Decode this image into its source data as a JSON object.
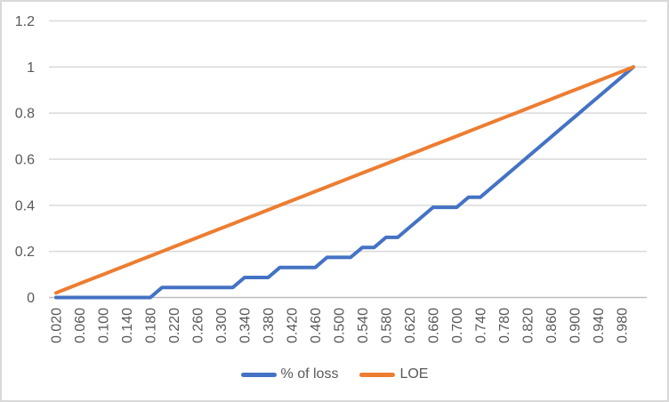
{
  "chart_data": {
    "type": "line",
    "title": "",
    "xlabel": "",
    "ylabel": "",
    "ylim": [
      0,
      1.2
    ],
    "grid": "horizontal",
    "legend_position": "bottom",
    "x": [
      0.02,
      0.04,
      0.06,
      0.08,
      0.1,
      0.12,
      0.14,
      0.16,
      0.18,
      0.2,
      0.22,
      0.24,
      0.26,
      0.28,
      0.3,
      0.32,
      0.34,
      0.36,
      0.38,
      0.4,
      0.42,
      0.44,
      0.46,
      0.48,
      0.5,
      0.52,
      0.54,
      0.56,
      0.58,
      0.6,
      0.62,
      0.64,
      0.66,
      0.68,
      0.7,
      0.72,
      0.74,
      0.76,
      0.78,
      0.8,
      0.82,
      0.84,
      0.86,
      0.88,
      0.9,
      0.92,
      0.94,
      0.96,
      0.98,
      1.0
    ],
    "x_tick_labels": [
      "0.020",
      "0.060",
      "0.100",
      "0.140",
      "0.180",
      "0.220",
      "0.260",
      "0.300",
      "0.340",
      "0.380",
      "0.420",
      "0.460",
      "0.500",
      "0.540",
      "0.580",
      "0.620",
      "0.660",
      "0.700",
      "0.740",
      "0.780",
      "0.820",
      "0.860",
      "0.900",
      "0.940",
      "0.980"
    ],
    "y_ticks": [
      0,
      0.2,
      0.4,
      0.6,
      0.8,
      1,
      1.2
    ],
    "y_tick_labels": [
      "0",
      "0.2",
      "0.4",
      "0.6",
      "0.8",
      "1",
      "1.2"
    ],
    "series": [
      {
        "name": "% of loss",
        "color": "#4472C4",
        "values": [
          0,
          0,
          0,
          0,
          0,
          0,
          0,
          0,
          0,
          0.0435,
          0.0435,
          0.0435,
          0.0435,
          0.0435,
          0.0435,
          0.0435,
          0.087,
          0.087,
          0.087,
          0.1304,
          0.1304,
          0.1304,
          0.1304,
          0.1739,
          0.1739,
          0.1739,
          0.2174,
          0.2174,
          0.2609,
          0.2609,
          0.3043,
          0.3478,
          0.3913,
          0.3913,
          0.3913,
          0.4348,
          0.4348,
          0.4783,
          0.5217,
          0.5652,
          0.6087,
          0.6522,
          0.6957,
          0.7391,
          0.7826,
          0.8261,
          0.8696,
          0.913,
          0.9565,
          1.0
        ]
      },
      {
        "name": "LOE",
        "color": "#ED7D31",
        "values": [
          0.02,
          0.04,
          0.06,
          0.08,
          0.1,
          0.12,
          0.14,
          0.16,
          0.18,
          0.2,
          0.22,
          0.24,
          0.26,
          0.28,
          0.3,
          0.32,
          0.34,
          0.36,
          0.38,
          0.4,
          0.42,
          0.44,
          0.46,
          0.48,
          0.5,
          0.52,
          0.54,
          0.56,
          0.58,
          0.6,
          0.62,
          0.64,
          0.66,
          0.68,
          0.7,
          0.72,
          0.74,
          0.76,
          0.78,
          0.8,
          0.82,
          0.84,
          0.86,
          0.88,
          0.9,
          0.92,
          0.94,
          0.96,
          0.98,
          1.0
        ]
      }
    ],
    "style": {
      "grid_color": "#D9D9D9",
      "axis_line_color": "#BFBFBF",
      "tick_label_color": "#595959",
      "background": "#FFFFFF",
      "border_color": "#D9D9D9"
    }
  }
}
